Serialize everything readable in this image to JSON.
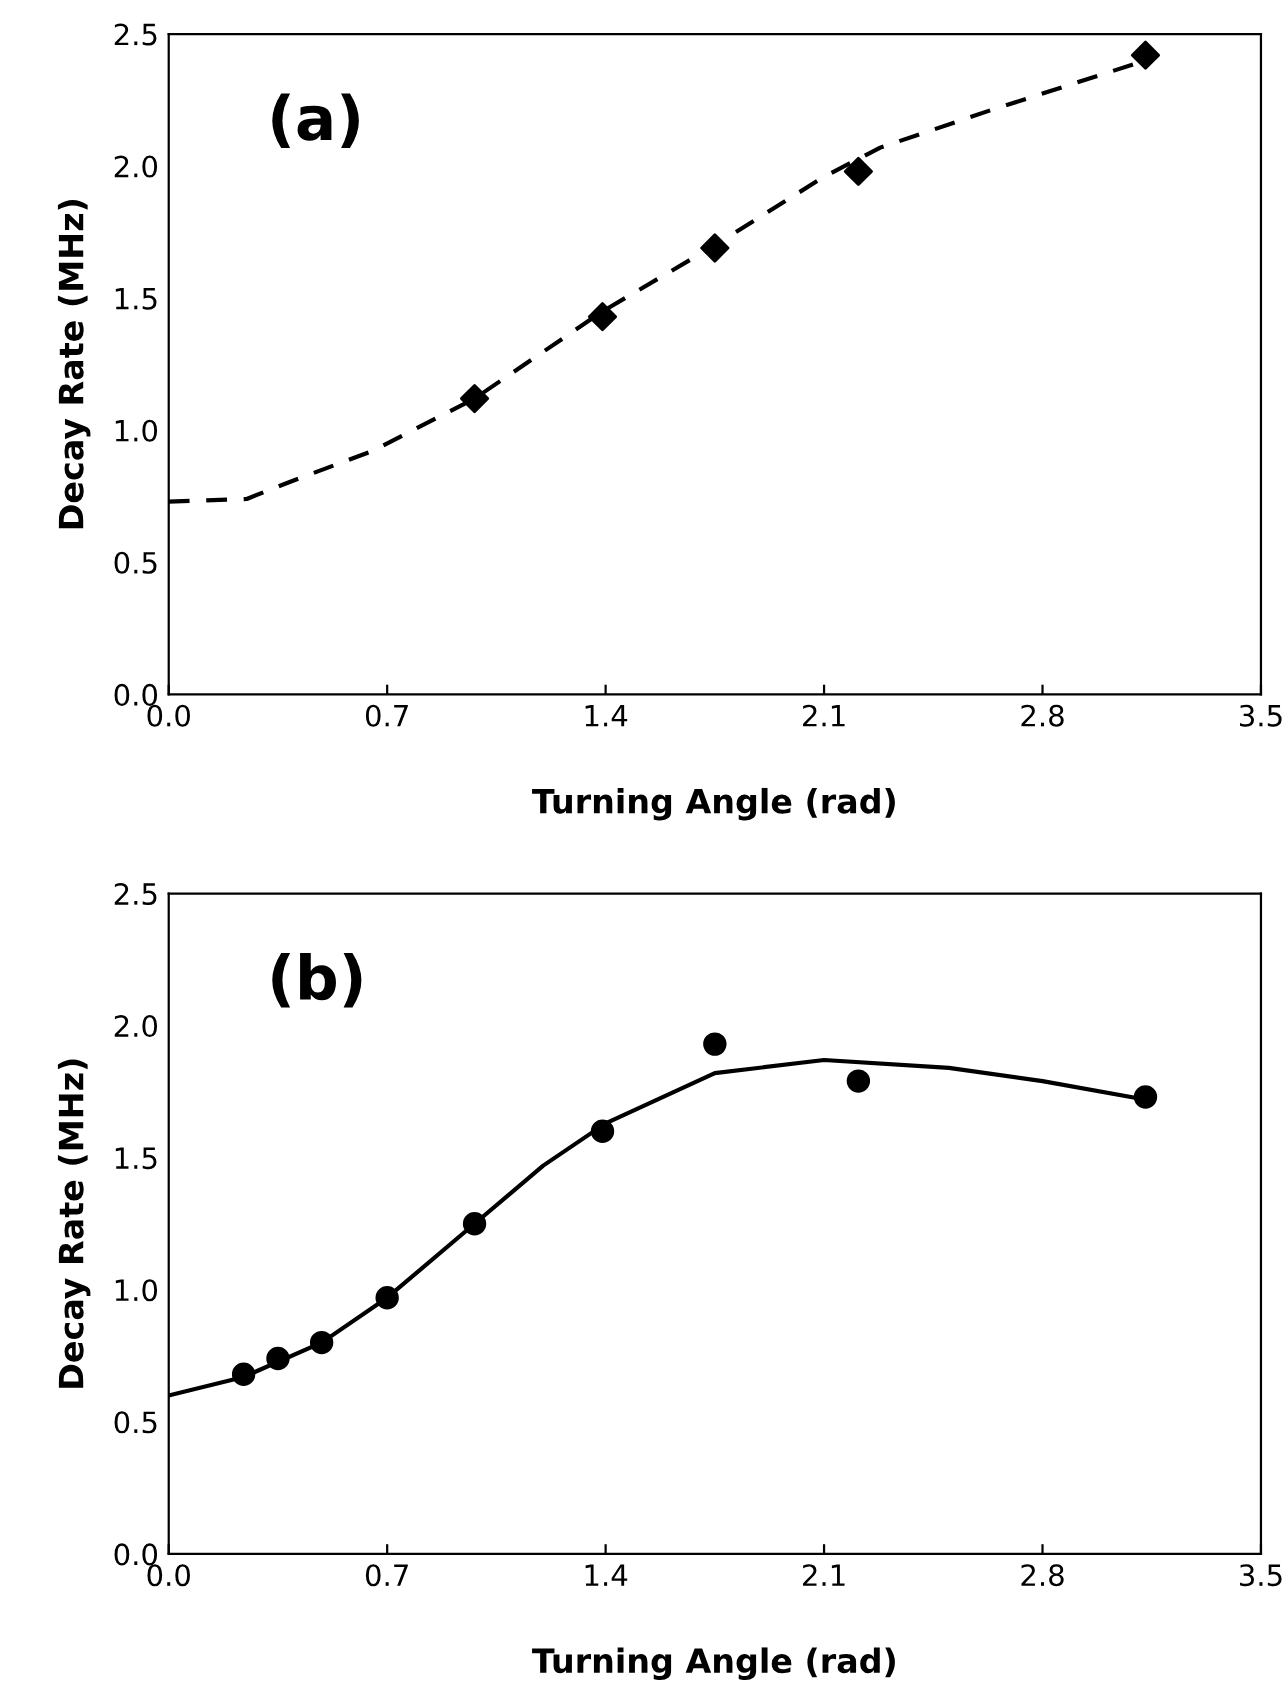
{
  "chart_data": [
    {
      "type": "scatter",
      "xlabel": "Turning Angle (rad)",
      "ylabel": "Decay Rate (MHz)",
      "annotations": [
        "(a)"
      ],
      "xlim": [
        0,
        3.5
      ],
      "ylim": [
        0,
        2.5
      ],
      "xticks": [
        {
          "value": 0,
          "label": "0.0"
        },
        0.7,
        1.4,
        2.1,
        2.8,
        3.5
      ],
      "yticks": [
        {
          "value": 0,
          "label": "0.0"
        },
        0.5,
        {
          "value": 1,
          "label": "1.0"
        },
        1.5,
        {
          "value": 2,
          "label": "2.0"
        },
        2.5
      ],
      "grid": false,
      "legend": false,
      "series": [
        {
          "marker": "diamond",
          "color": "#000000",
          "x": [
            0.98,
            1.39,
            1.75,
            2.21,
            3.13
          ],
          "values": [
            1.12,
            1.43,
            1.69,
            1.98,
            2.42
          ]
        },
        {
          "type": "line",
          "line_style": "dashed",
          "marker": "none",
          "color": "#000000",
          "x": [
            0,
            0.25,
            0.4,
            0.65,
            0.98,
            1.39,
            1.75,
            2.1,
            2.28,
            2.63,
            3.13
          ],
          "values": [
            0.73,
            0.74,
            0.81,
            0.92,
            1.12,
            1.45,
            1.7,
            1.96,
            2.07,
            2.21,
            2.4
          ]
        }
      ]
    },
    {
      "type": "scatter",
      "xlabel": "Turning Angle (rad)",
      "ylabel": "Decay Rate (MHz)",
      "annotations": [
        "(b)"
      ],
      "xlim": [
        0,
        3.5
      ],
      "ylim": [
        0,
        2.5
      ],
      "xticks": [
        {
          "value": 0,
          "label": "0.0"
        },
        0.7,
        1.4,
        2.1,
        2.8,
        3.5
      ],
      "yticks": [
        {
          "value": 0,
          "label": "0.0"
        },
        0.5,
        {
          "value": 1,
          "label": "1.0"
        },
        1.5,
        {
          "value": 2,
          "label": "2.0"
        },
        2.5
      ],
      "grid": false,
      "legend": false,
      "series": [
        {
          "marker": "circle",
          "color": "#000000",
          "x": [
            0.24,
            0.35,
            0.49,
            0.7,
            0.98,
            1.39,
            1.75,
            2.21,
            3.13
          ],
          "values": [
            0.68,
            0.74,
            0.8,
            0.97,
            1.25,
            1.6,
            1.93,
            1.79,
            1.73
          ]
        },
        {
          "type": "line",
          "line_style": "solid",
          "marker": "none",
          "color": "#000000",
          "x": [
            0,
            0.24,
            0.49,
            0.7,
            0.98,
            1.2,
            1.4,
            1.75,
            2.1,
            2.5,
            2.8,
            3.13
          ],
          "values": [
            0.6,
            0.67,
            0.8,
            0.97,
            1.25,
            1.47,
            1.63,
            1.82,
            1.87,
            1.84,
            1.79,
            1.72
          ]
        }
      ]
    }
  ]
}
